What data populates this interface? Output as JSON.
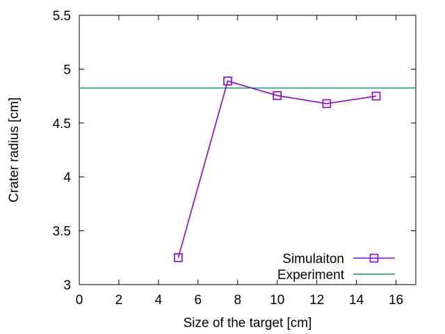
{
  "chart_data": {
    "type": "line",
    "title": "",
    "xlabel": "Size of the target [cm]",
    "ylabel": "Crater radius [cm]",
    "xlim": [
      0,
      17
    ],
    "ylim": [
      3,
      5.5
    ],
    "xticks": [
      0,
      2,
      4,
      6,
      8,
      10,
      12,
      14,
      16
    ],
    "yticks": [
      3,
      3.5,
      4,
      4.5,
      5,
      5.5
    ],
    "xtick_labels": [
      "0",
      "2",
      "4",
      "6",
      "8",
      "10",
      "12",
      "14",
      "16"
    ],
    "ytick_labels": [
      "3",
      "3.5",
      "4",
      "4.5",
      "5",
      "5.5"
    ],
    "grid": false,
    "legend_position": "bottom-right",
    "series": [
      {
        "name": "Simulaiton",
        "kind": "line-with-square-markers",
        "color": "#9400d3",
        "x": [
          5,
          7.5,
          10,
          12.5,
          15
        ],
        "y": [
          3.25,
          4.89,
          4.755,
          4.68,
          4.75
        ]
      },
      {
        "name": "Experiment",
        "kind": "horizontal-line",
        "color": "#009e73",
        "y": 4.825
      }
    ]
  }
}
